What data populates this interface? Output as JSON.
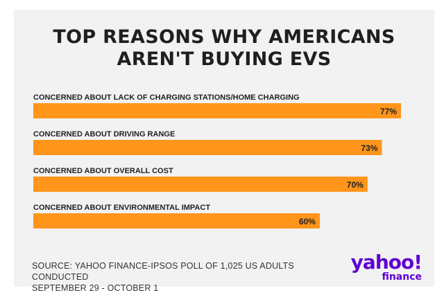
{
  "colors": {
    "background": "#f2f2f2",
    "bar": "#ff951b",
    "text": "#1f1f1f",
    "brand": "#6001d2"
  },
  "chart_data": {
    "type": "bar",
    "orientation": "horizontal",
    "title": "TOP REASONS WHY AMERICANS AREN'T BUYING EVS",
    "title_lines": [
      "TOP REASONS WHY AMERICANS",
      "AREN'T BUYING EVS"
    ],
    "categories": [
      "CONCERNED ABOUT LACK OF CHARGING STATIONS/HOME CHARGING",
      "CONCERNED ABOUT DRIVING RANGE",
      "CONCERNED ABOUT OVERALL COST",
      "CONCERNED ABOUT ENVIRONMENTAL IMPACT"
    ],
    "values": [
      77,
      73,
      70,
      60
    ],
    "value_labels": [
      "77%",
      "73%",
      "70%",
      "60%"
    ],
    "unit": "%",
    "xlim": [
      0,
      77
    ],
    "grid": false,
    "legend": "none"
  },
  "source": {
    "line1": "SOURCE: YAHOO FINANCE-IPSOS POLL OF 1,025 US ADULTS CONDUCTED",
    "line2": "SEPTEMBER 29 - OCTOBER 1"
  },
  "logo": {
    "yahoo": "yahoo!",
    "finance": "finance"
  }
}
